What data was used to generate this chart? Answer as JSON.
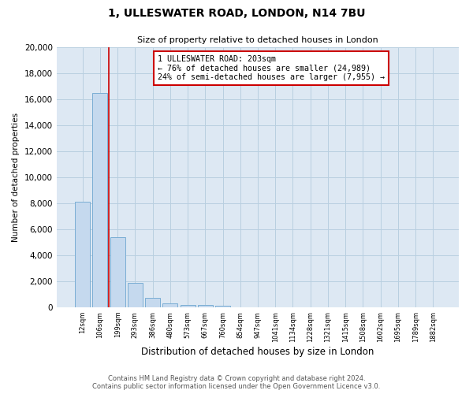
{
  "title_line1": "1, ULLESWATER ROAD, LONDON, N14 7BU",
  "title_line2": "Size of property relative to detached houses in London",
  "xlabel": "Distribution of detached houses by size in London",
  "ylabel": "Number of detached properties",
  "bar_color": "#c5d9ee",
  "bar_edge_color": "#7aadd4",
  "categories": [
    "12sqm",
    "106sqm",
    "199sqm",
    "293sqm",
    "386sqm",
    "480sqm",
    "573sqm",
    "667sqm",
    "760sqm",
    "854sqm",
    "947sqm",
    "1041sqm",
    "1134sqm",
    "1228sqm",
    "1321sqm",
    "1415sqm",
    "1508sqm",
    "1602sqm",
    "1695sqm",
    "1789sqm",
    "1882sqm"
  ],
  "values": [
    8100,
    16500,
    5400,
    1900,
    700,
    320,
    200,
    170,
    130,
    0,
    0,
    0,
    0,
    0,
    0,
    0,
    0,
    0,
    0,
    0,
    0
  ],
  "ylim": [
    0,
    20000
  ],
  "yticks": [
    0,
    2000,
    4000,
    6000,
    8000,
    10000,
    12000,
    14000,
    16000,
    18000,
    20000
  ],
  "property_line_color": "#cc0000",
  "annotation_text": "1 ULLESWATER ROAD: 203sqm\n← 76% of detached houses are smaller (24,989)\n24% of semi-detached houses are larger (7,955) →",
  "annotation_box_color": "#ffffff",
  "annotation_box_edge_color": "#cc0000",
  "footer_line1": "Contains HM Land Registry data © Crown copyright and database right 2024.",
  "footer_line2": "Contains public sector information licensed under the Open Government Licence v3.0.",
  "bg_color": "#ffffff",
  "plot_bg_color": "#dde8f3",
  "grid_color": "#b8cfe0"
}
